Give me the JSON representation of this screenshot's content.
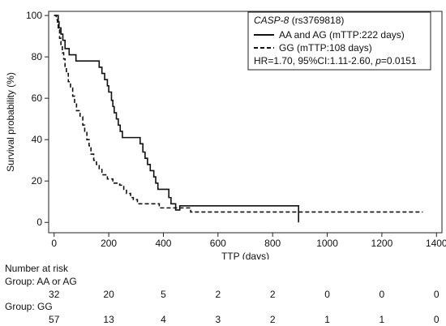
{
  "chart_data": {
    "type": "line",
    "xlabel": "TTP (days)",
    "ylabel": "Survival probability (%)",
    "xlim": [
      -20,
      1420
    ],
    "ylim": [
      -5,
      102
    ],
    "xticks": [
      0,
      200,
      400,
      600,
      800,
      1000,
      1200,
      1400
    ],
    "yticks": [
      0,
      20,
      40,
      60,
      80,
      100
    ],
    "grid": false,
    "legend": {
      "placement": "top-right",
      "title_gene": "CASP-8",
      "title_snp": " (rs3769818)",
      "entries": [
        "AA and AG (mTTP:222 days)",
        "GG (mTTP:108 days)"
      ],
      "stats_text": "HR=1.70, 95%CI:1.11-2.60, ",
      "stats_p_label": "p",
      "stats_p_value": "=0.0151"
    },
    "series": [
      {
        "name": "AA and AG (mTTP:222 days)",
        "style": "solid",
        "x": [
          0,
          10,
          15,
          18,
          25,
          32,
          40,
          55,
          80,
          150,
          165,
          175,
          185,
          195,
          200,
          210,
          215,
          220,
          228,
          235,
          242,
          250,
          258,
          265,
          300,
          315,
          325,
          333,
          342,
          352,
          365,
          372,
          380,
          400,
          420,
          428,
          435,
          445,
          460,
          880,
          895
        ],
        "y": [
          100,
          100,
          97,
          94,
          91,
          88,
          84,
          81,
          78,
          78,
          75,
          72,
          69,
          66,
          63,
          59,
          56,
          53,
          50,
          47,
          44,
          41,
          41,
          41,
          41,
          38,
          34,
          31,
          28,
          25,
          22,
          19,
          16,
          16,
          12,
          9,
          9,
          6,
          8,
          8,
          0
        ]
      },
      {
        "name": "GG (mTTP:108 days)",
        "style": "dashed",
        "x": [
          0,
          8,
          12,
          15,
          20,
          25,
          30,
          35,
          40,
          45,
          52,
          60,
          68,
          75,
          82,
          95,
          105,
          112,
          120,
          128,
          135,
          145,
          155,
          165,
          175,
          195,
          215,
          240,
          255,
          265,
          280,
          290,
          305,
          330,
          385,
          465,
          500,
          1350
        ],
        "y": [
          100,
          98,
          96,
          93,
          89,
          86,
          82,
          79,
          75,
          72,
          68,
          65,
          61,
          58,
          54,
          51,
          47,
          44,
          40,
          37,
          33,
          30,
          28,
          26,
          23,
          21,
          19,
          18,
          16,
          14,
          12,
          11,
          9,
          9,
          7,
          7,
          5,
          5
        ]
      }
    ]
  },
  "risk_table": {
    "title": "Number at risk",
    "timepoints": [
      0,
      200,
      400,
      600,
      800,
      1000,
      1200,
      1400
    ],
    "groups": [
      {
        "label": "Group: AA or AG",
        "counts": [
          "32",
          "20",
          "5",
          "2",
          "2",
          "0",
          "0",
          "0"
        ]
      },
      {
        "label": "Group: GG",
        "counts": [
          "57",
          "13",
          "4",
          "3",
          "2",
          "1",
          "1",
          "0"
        ]
      }
    ]
  }
}
